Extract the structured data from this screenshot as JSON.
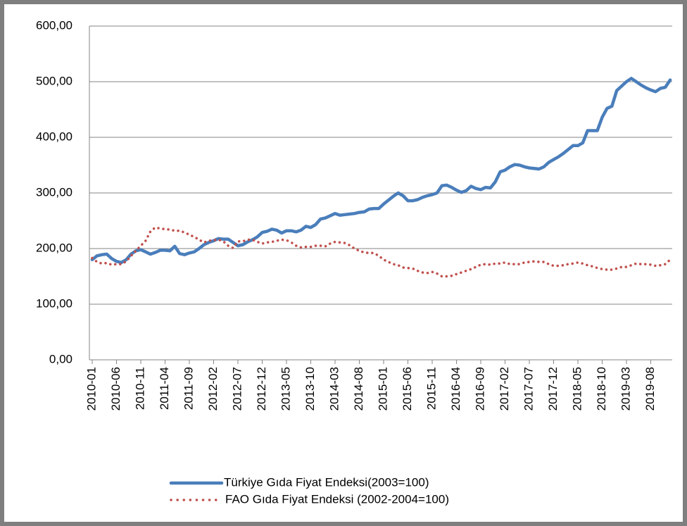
{
  "chart_data": {
    "type": "line",
    "categories": [
      "2010-01",
      null,
      null,
      null,
      null,
      "2010-06",
      null,
      null,
      null,
      null,
      "2010-11",
      null,
      null,
      null,
      null,
      "2011-04",
      null,
      null,
      null,
      null,
      "2011-09",
      null,
      null,
      null,
      null,
      "2012-02",
      null,
      null,
      null,
      null,
      "2012-07",
      null,
      null,
      null,
      null,
      "2012-12",
      null,
      null,
      null,
      null,
      "2013-05",
      null,
      null,
      null,
      null,
      "2013-10",
      null,
      null,
      null,
      null,
      "2014-03",
      null,
      null,
      null,
      null,
      "2014-08",
      null,
      null,
      null,
      null,
      "2015-01",
      null,
      null,
      null,
      null,
      "2015-06",
      null,
      null,
      null,
      null,
      "2015-11",
      null,
      null,
      null,
      null,
      "2016-04",
      null,
      null,
      null,
      null,
      "2016-09",
      null,
      null,
      null,
      null,
      "2017-02",
      null,
      null,
      null,
      null,
      "2017-07",
      null,
      null,
      null,
      null,
      "2017-12",
      null,
      null,
      null,
      null,
      "2018-05",
      null,
      null,
      null,
      null,
      "2018-10",
      null,
      null,
      null,
      null,
      "2019-03",
      null,
      null,
      null,
      null,
      "2019-08",
      null,
      null,
      null,
      null
    ],
    "series": [
      {
        "name": "Türkiye Gıda Fiyat Endeksi(2003=100)",
        "color": "#4a7ebb",
        "dash": "solid",
        "values": [
          180,
          187,
          189,
          190,
          182,
          177,
          175,
          180,
          190,
          196,
          198,
          194,
          190,
          193,
          197,
          197,
          196,
          204,
          191,
          189,
          192,
          194,
          200,
          207,
          211,
          214,
          218,
          217,
          217,
          211,
          205,
          207,
          212,
          216,
          221,
          229,
          231,
          235,
          233,
          228,
          232,
          232,
          230,
          233,
          240,
          238,
          243,
          253,
          255,
          259,
          263,
          260,
          261,
          262,
          263,
          265,
          266,
          271,
          272,
          272,
          280,
          287,
          294,
          300,
          295,
          286,
          286,
          288,
          292,
          295,
          297,
          300,
          313,
          314,
          310,
          305,
          301,
          304,
          312,
          308,
          306,
          310,
          309,
          320,
          338,
          341,
          347,
          351,
          350,
          347,
          345,
          344,
          343,
          347,
          355,
          360,
          365,
          371,
          378,
          385,
          385,
          390,
          412,
          412,
          412,
          436,
          452,
          456,
          484,
          492,
          500,
          506,
          500,
          494,
          489,
          485,
          482,
          488,
          490,
          503
        ]
      },
      {
        "name": "FAO Gıda Fiyat Endeksi (2002-2004=100)",
        "color": "#c0504d",
        "dash": "dotted",
        "values": [
          183,
          176,
          173,
          174,
          171,
          172,
          172,
          177,
          187,
          196,
          205,
          214,
          231,
          238,
          236,
          235,
          234,
          232,
          232,
          229,
          225,
          221,
          216,
          211,
          214,
          215,
          216,
          213,
          205,
          201,
          213,
          213,
          216,
          216,
          212,
          209,
          211,
          212,
          214,
          216,
          215,
          211,
          205,
          202,
          203,
          203,
          205,
          205,
          204,
          209,
          212,
          211,
          210,
          206,
          200,
          196,
          193,
          192,
          192,
          187,
          180,
          176,
          172,
          170,
          166,
          165,
          164,
          160,
          157,
          156,
          158,
          155,
          150,
          150,
          151,
          154,
          157,
          160,
          163,
          167,
          171,
          172,
          171,
          173,
          173,
          175,
          172,
          172,
          172,
          175,
          176,
          177,
          176,
          176,
          172,
          169,
          169,
          170,
          172,
          173,
          175,
          173,
          170,
          168,
          165,
          163,
          162,
          162,
          164,
          167,
          167,
          170,
          173,
          172,
          172,
          171,
          169,
          170,
          172,
          180
        ]
      }
    ],
    "ylim": [
      0,
      600
    ],
    "yticks": [
      {
        "value": 0,
        "label": "0,00"
      },
      {
        "value": 100,
        "label": "100,00"
      },
      {
        "value": 200,
        "label": "200,00"
      },
      {
        "value": 300,
        "label": "300,00"
      },
      {
        "value": 400,
        "label": "400,00"
      },
      {
        "value": 500,
        "label": "500,00"
      },
      {
        "value": 600,
        "label": "600,00"
      }
    ],
    "grid": true,
    "legend": "bottom"
  }
}
